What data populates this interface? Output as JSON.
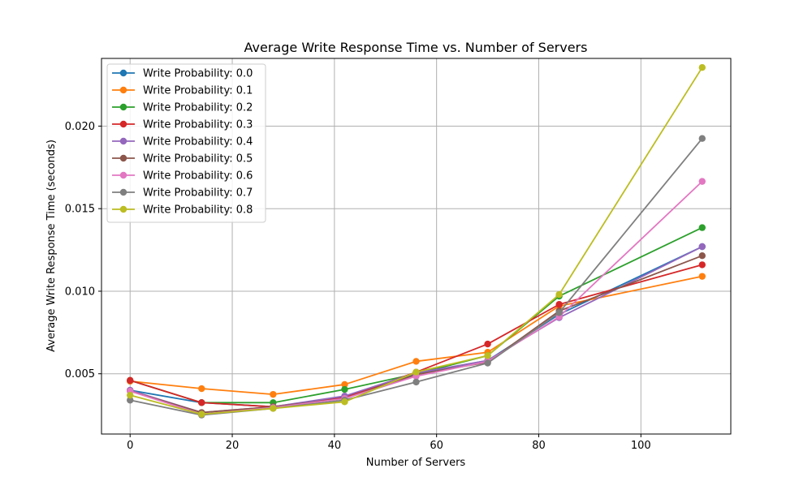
{
  "chart_data": {
    "type": "line",
    "title": "Average Write Response Time vs. Number of Servers",
    "xlabel": "Number of Servers",
    "ylabel": "Average Write Response Time (seconds)",
    "x": [
      0,
      14,
      28,
      42,
      56,
      70,
      84,
      112
    ],
    "xlim": [
      -5.6,
      117.6
    ],
    "ylim": [
      0.00135,
      0.0241
    ],
    "x_ticks": [
      0,
      20,
      40,
      60,
      80,
      100
    ],
    "x_tick_labels": [
      "0",
      "20",
      "40",
      "60",
      "80",
      "100"
    ],
    "y_ticks": [
      0.005,
      0.01,
      0.015,
      0.02
    ],
    "y_tick_labels": [
      "0.005",
      "0.010",
      "0.015",
      "0.020"
    ],
    "grid": true,
    "legend_position": "top-left",
    "series": [
      {
        "name": "Write Probability: 0.0",
        "color": "#1f77b4",
        "values": [
          0.004,
          0.00325,
          0.003,
          0.0036,
          0.005,
          0.0058,
          0.0086,
          0.0127
        ]
      },
      {
        "name": "Write Probability: 0.1",
        "color": "#ff7f0e",
        "values": [
          0.00455,
          0.0041,
          0.00375,
          0.00435,
          0.00575,
          0.0063,
          0.0091,
          0.0109
        ]
      },
      {
        "name": "Write Probability: 0.2",
        "color": "#2ca02c",
        "values": [
          0.0046,
          0.00325,
          0.00325,
          0.00405,
          0.005,
          0.0061,
          0.0097,
          0.01385
        ]
      },
      {
        "name": "Write Probability: 0.3",
        "color": "#d62728",
        "values": [
          0.0046,
          0.00325,
          0.003,
          0.00355,
          0.0051,
          0.0068,
          0.0092,
          0.0116
        ]
      },
      {
        "name": "Write Probability: 0.4",
        "color": "#9467bd",
        "values": [
          0.004,
          0.00265,
          0.003,
          0.00365,
          0.00505,
          0.0058,
          0.0084,
          0.0127
        ]
      },
      {
        "name": "Write Probability: 0.5",
        "color": "#8c564b",
        "values": [
          0.00395,
          0.00265,
          0.003,
          0.0035,
          0.00495,
          0.0057,
          0.0088,
          0.01215
        ]
      },
      {
        "name": "Write Probability: 0.6",
        "color": "#e377c2",
        "values": [
          0.00395,
          0.00255,
          0.00295,
          0.0035,
          0.00485,
          0.00575,
          0.00845,
          0.01665
        ]
      },
      {
        "name": "Write Probability: 0.7",
        "color": "#7f7f7f",
        "values": [
          0.0034,
          0.0025,
          0.0029,
          0.0034,
          0.0045,
          0.00565,
          0.0087,
          0.01925
        ]
      },
      {
        "name": "Write Probability: 0.8",
        "color": "#bcbd22",
        "values": [
          0.0037,
          0.00255,
          0.0029,
          0.0033,
          0.0051,
          0.0061,
          0.0098,
          0.02355
        ]
      }
    ]
  }
}
